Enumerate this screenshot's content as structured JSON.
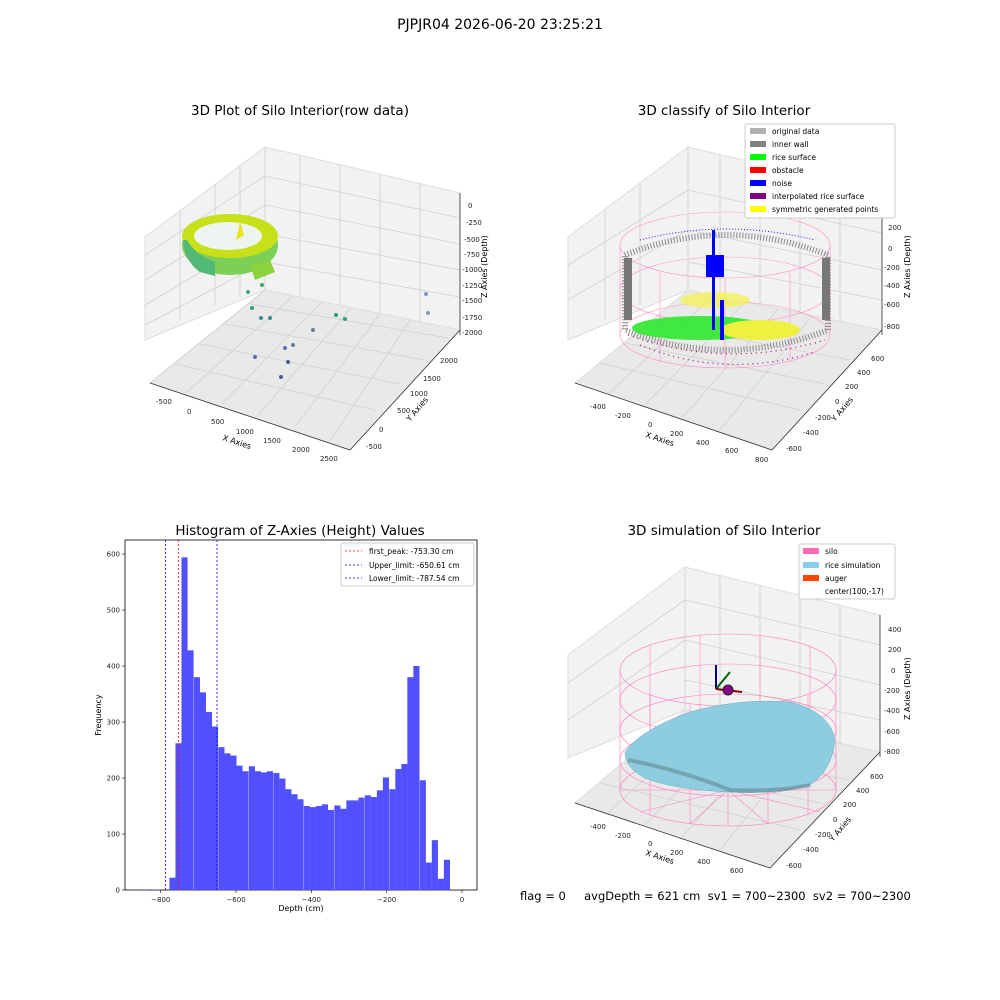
{
  "suptitle": "PJPJR04 2026-06-20 23:25:21",
  "footer": "flag = 0     avgDepth = 621 cm  sv1 = 700~2300  sv2 = 700~2300",
  "panels": {
    "raw": {
      "title": "3D Plot of Silo Interior(row data)",
      "xlabel": "X Axies",
      "ylabel": "Y Axies",
      "zlabel": "Z Axies (Depth)",
      "xticks": [
        "-500",
        "0",
        "500",
        "1000",
        "1500",
        "2000",
        "2500"
      ],
      "yticks": [
        "-500",
        "0",
        "500",
        "1000",
        "1500",
        "2000"
      ],
      "zticks": [
        "0",
        "-250",
        "-500",
        "-750",
        "-1000",
        "-1250",
        "-1500",
        "-1750",
        "-2000"
      ]
    },
    "classify": {
      "title": "3D classify of Silo Interior",
      "xlabel": "X Axies",
      "ylabel": "Y Axies",
      "zlabel": "Z Axies (Depth)",
      "xticks": [
        "-400",
        "-200",
        "0",
        "200",
        "400",
        "600",
        "800"
      ],
      "yticks": [
        "-600",
        "-400",
        "-200",
        "0",
        "200",
        "400",
        "600"
      ],
      "zticks": [
        "200",
        "0",
        "-200",
        "-400",
        "-600",
        "-800"
      ],
      "legend": [
        {
          "label": "original data",
          "color": "#b0b0b0"
        },
        {
          "label": "inner wall",
          "color": "#808080"
        },
        {
          "label": "rice surface",
          "color": "#00ff00"
        },
        {
          "label": "obstacle",
          "color": "#ff0000"
        },
        {
          "label": "noise",
          "color": "#0000ff"
        },
        {
          "label": "interpolated rice surface",
          "color": "#800080"
        },
        {
          "label": "symmetric generated points",
          "color": "#ffff00"
        }
      ]
    },
    "sim": {
      "title": "3D simulation of Silo Interior",
      "xlabel": "X Axies",
      "ylabel": "Y Axies",
      "zlabel": "Z Axies (Depth)",
      "xticks": [
        "-400",
        "-200",
        "0",
        "200",
        "400",
        "600"
      ],
      "yticks": [
        "-600",
        "-400",
        "-200",
        "0",
        "200",
        "400",
        "600"
      ],
      "zticks": [
        "400",
        "200",
        "0",
        "-200",
        "-400",
        "-600",
        "-800"
      ],
      "legend": [
        {
          "label": "silo",
          "color": "#ff69b4"
        },
        {
          "label": "rice simulation",
          "color": "#87ceeb"
        },
        {
          "label": "auger",
          "color": "#ff4500"
        },
        {
          "label": "center(100,-17)",
          "color": ""
        }
      ]
    }
  },
  "chart_data": {
    "type": "bar",
    "title": "Histogram of Z-Axies (Height) Values",
    "xlabel": "Depth (cm)",
    "ylabel": "Frequency",
    "xlim": [
      -895,
      40
    ],
    "ylim": [
      0,
      625
    ],
    "xticks": [
      -800,
      -600,
      -400,
      -200,
      0
    ],
    "yticks": [
      0,
      100,
      200,
      300,
      400,
      500,
      600
    ],
    "bin_width": 16.2,
    "bin_start": [
      -850,
      -819,
      -777,
      -761,
      -745,
      -729,
      -712,
      -696,
      -680,
      -664,
      -647,
      -631,
      -615,
      -599,
      -583,
      -566,
      -550,
      -534,
      -518,
      -501,
      -485,
      -469,
      -453,
      -437,
      -420,
      -404,
      -388,
      -372,
      -356,
      -339,
      -323,
      -307,
      -291,
      -275,
      -258,
      -242,
      -226,
      -210,
      -193,
      -177,
      -161,
      -145,
      -129,
      -112,
      -96,
      -80,
      -64,
      -48,
      -31,
      -15
    ],
    "values": [
      1,
      1,
      22,
      262,
      594,
      428,
      380,
      353,
      318,
      292,
      255,
      244,
      240,
      222,
      212,
      221,
      212,
      210,
      212,
      209,
      199,
      180,
      171,
      162,
      150,
      148,
      150,
      153,
      143,
      151,
      145,
      160,
      160,
      165,
      169,
      166,
      178,
      201,
      180,
      216,
      225,
      380,
      400,
      196,
      49,
      89,
      20,
      54,
      0,
      0
    ],
    "bar_color": "#5050ff",
    "vlines": [
      {
        "label": "first_peak: -753.30 cm",
        "x": -753.3,
        "color": "#ff0000"
      },
      {
        "label": "Upper_limit: -650.61 cm",
        "x": -650.61,
        "color": "#0000ff"
      },
      {
        "label": "Lower_limit: -787.54 cm",
        "x": -787.54,
        "color": "#0000ff"
      }
    ],
    "legend_position": "top-right"
  }
}
